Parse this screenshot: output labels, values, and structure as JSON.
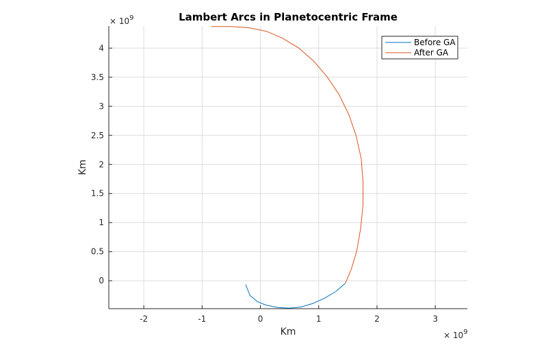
{
  "chart_data": {
    "type": "line",
    "title": "Lambert Arcs in Planetocentric Frame",
    "xlabel": "Km",
    "ylabel": "Km",
    "x_exponent_base": "× 10",
    "x_exponent_power": "9",
    "y_exponent_base": "× 10",
    "y_exponent_power": "9",
    "xlim": [
      -2.6,
      3.55
    ],
    "ylim": [
      -0.48,
      4.38
    ],
    "xticks": [
      -2,
      -1,
      0,
      1,
      2,
      3
    ],
    "xtick_labels": [
      "-2",
      "-1",
      "0",
      "1",
      "2",
      "3"
    ],
    "yticks": [
      0,
      0.5,
      1,
      1.5,
      2,
      2.5,
      3,
      3.5,
      4
    ],
    "ytick_labels": [
      "0",
      "0.5",
      "1",
      "1.5",
      "2",
      "2.5",
      "3",
      "3.5",
      "4"
    ],
    "grid": true,
    "legend_position": "top-right",
    "series": [
      {
        "name": "Before GA",
        "color": "#0072bd",
        "x": [
          -0.25,
          -0.18,
          -0.05,
          0.1,
          0.3,
          0.5,
          0.7,
          0.9,
          1.1,
          1.3,
          1.46
        ],
        "y": [
          -0.07,
          -0.25,
          -0.36,
          -0.42,
          -0.46,
          -0.47,
          -0.45,
          -0.39,
          -0.3,
          -0.18,
          -0.04
        ]
      },
      {
        "name": "After GA",
        "color": "#d95319",
        "x": [
          1.46,
          1.56,
          1.65,
          1.72,
          1.76,
          1.76,
          1.73,
          1.64,
          1.52,
          1.35,
          1.15,
          0.92,
          0.66,
          0.38,
          0.1,
          -0.2,
          -0.5,
          -0.84
        ],
        "y": [
          -0.04,
          0.2,
          0.5,
          0.9,
          1.3,
          1.7,
          2.1,
          2.5,
          2.85,
          3.2,
          3.5,
          3.77,
          4.0,
          4.17,
          4.29,
          4.35,
          4.37,
          4.37
        ]
      }
    ]
  }
}
